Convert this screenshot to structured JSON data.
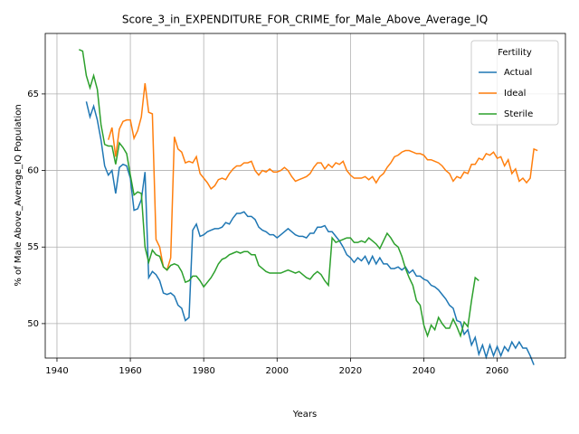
{
  "chart_data": {
    "type": "line",
    "title": "Score_3_in_EXPENDITURE_FOR_CRIME_for_Male_Above_Average_IQ",
    "xlabel": "Years",
    "ylabel": "% of Male Above_Average_IQ Population",
    "legend_title": "Fertility",
    "legend": "upper right",
    "grid": true,
    "xlim": [
      1936.8,
      2078.6
    ],
    "ylim": [
      47.75,
      68.95
    ],
    "xticks": [
      1940,
      1960,
      1980,
      2000,
      2020,
      2040,
      2060
    ],
    "yticks": [
      50,
      55,
      60,
      65
    ],
    "x": [
      1946,
      1947,
      1948,
      1949,
      1950,
      1951,
      1952,
      1953,
      1954,
      1955,
      1956,
      1957,
      1958,
      1959,
      1960,
      1961,
      1962,
      1963,
      1964,
      1965,
      1966,
      1967,
      1968,
      1969,
      1970,
      1971,
      1972,
      1973,
      1974,
      1975,
      1976,
      1977,
      1978,
      1979,
      1980,
      1981,
      1982,
      1983,
      1984,
      1985,
      1986,
      1987,
      1988,
      1989,
      1990,
      1991,
      1992,
      1993,
      1994,
      1995,
      1996,
      1997,
      1998,
      1999,
      2000,
      2001,
      2002,
      2003,
      2004,
      2005,
      2006,
      2007,
      2008,
      2009,
      2010,
      2011,
      2012,
      2013,
      2014,
      2015,
      2016,
      2017,
      2018,
      2019,
      2020,
      2021,
      2022,
      2023,
      2024,
      2025,
      2026,
      2027,
      2028,
      2029,
      2030,
      2031,
      2032,
      2033,
      2034,
      2035,
      2036,
      2037,
      2038,
      2039,
      2040,
      2041,
      2042,
      2043,
      2044,
      2045,
      2046,
      2047,
      2048,
      2049,
      2050,
      2051,
      2052,
      2053,
      2054,
      2055,
      2056,
      2057,
      2058,
      2059,
      2060,
      2061,
      2062,
      2063,
      2064,
      2065,
      2066,
      2067,
      2068,
      2069,
      2070,
      2071
    ],
    "series": [
      {
        "name": "Actual",
        "color": "#1f77b4",
        "values": [
          null,
          null,
          64.5,
          63.5,
          64.2,
          63.3,
          62.0,
          60.3,
          59.7,
          60.0,
          58.5,
          60.2,
          60.4,
          60.3,
          59.5,
          57.4,
          57.5,
          58.1,
          59.9,
          53.0,
          53.4,
          53.2,
          52.8,
          52.0,
          51.9,
          52.0,
          51.8,
          51.2,
          51.0,
          50.2,
          50.4,
          56.1,
          56.5,
          55.7,
          55.8,
          56.0,
          56.1,
          56.2,
          56.2,
          56.3,
          56.6,
          56.5,
          56.9,
          57.2,
          57.2,
          57.3,
          57.0,
          57.0,
          56.8,
          56.3,
          56.1,
          56.0,
          55.8,
          55.8,
          55.6,
          55.8,
          56.0,
          56.2,
          56.0,
          55.8,
          55.7,
          55.7,
          55.6,
          55.9,
          55.9,
          56.3,
          56.3,
          56.4,
          56.0,
          56.0,
          55.7,
          55.4,
          55.0,
          54.5,
          54.3,
          54.0,
          54.3,
          54.1,
          54.4,
          53.9,
          54.4,
          53.9,
          54.3,
          53.9,
          53.9,
          53.6,
          53.6,
          53.7,
          53.5,
          53.7,
          53.3,
          53.5,
          53.1,
          53.1,
          52.9,
          52.8,
          52.5,
          52.4,
          52.2,
          51.9,
          51.6,
          51.2,
          51.0,
          50.2,
          50.1,
          49.3,
          49.6,
          48.6,
          49.1,
          48.0,
          48.6,
          47.8,
          48.6,
          47.9,
          48.5,
          47.9,
          48.5,
          48.2,
          48.8,
          48.4,
          48.8,
          48.4,
          48.4,
          47.9,
          47.3,
          null
        ]
      },
      {
        "name": "Ideal",
        "color": "#ff7f0e",
        "values": [
          null,
          null,
          null,
          null,
          null,
          null,
          null,
          null,
          62.0,
          62.8,
          60.9,
          62.7,
          63.2,
          63.3,
          63.3,
          62.1,
          62.6,
          63.5,
          65.7,
          63.8,
          63.7,
          55.5,
          55.0,
          53.7,
          53.5,
          54.3,
          62.2,
          61.4,
          61.2,
          60.5,
          60.6,
          60.5,
          60.9,
          59.8,
          59.5,
          59.2,
          58.8,
          59.0,
          59.4,
          59.5,
          59.4,
          59.8,
          60.1,
          60.3,
          60.3,
          60.5,
          60.5,
          60.6,
          60.0,
          59.7,
          60.0,
          59.9,
          60.1,
          59.9,
          59.9,
          60.0,
          60.2,
          60.0,
          59.6,
          59.3,
          59.4,
          59.5,
          59.6,
          59.8,
          60.2,
          60.5,
          60.5,
          60.1,
          60.4,
          60.2,
          60.5,
          60.4,
          60.6,
          60.0,
          59.7,
          59.5,
          59.5,
          59.5,
          59.6,
          59.4,
          59.6,
          59.2,
          59.6,
          59.8,
          60.2,
          60.5,
          60.9,
          61.0,
          61.2,
          61.3,
          61.3,
          61.2,
          61.1,
          61.1,
          61.0,
          60.7,
          60.7,
          60.6,
          60.5,
          60.3,
          60.0,
          59.8,
          59.3,
          59.6,
          59.5,
          59.9,
          59.8,
          60.4,
          60.4,
          60.8,
          60.7,
          61.1,
          61.0,
          61.2,
          60.8,
          60.9,
          60.3,
          60.7,
          59.8,
          60.1,
          59.3,
          59.5,
          59.2,
          59.5,
          61.4,
          61.3
        ]
      },
      {
        "name": "Sterile",
        "color": "#2ca02c",
        "values": [
          67.9,
          67.8,
          66.2,
          65.4,
          66.2,
          65.3,
          63.0,
          61.7,
          61.6,
          61.6,
          60.4,
          61.8,
          61.5,
          61.1,
          59.7,
          58.4,
          58.6,
          58.5,
          55.0,
          54.0,
          54.8,
          54.5,
          54.4,
          53.7,
          53.5,
          53.8,
          53.9,
          53.8,
          53.4,
          52.7,
          52.8,
          53.1,
          53.1,
          52.8,
          52.4,
          52.7,
          53.0,
          53.4,
          53.9,
          54.2,
          54.3,
          54.5,
          54.6,
          54.7,
          54.6,
          54.7,
          54.7,
          54.5,
          54.5,
          53.8,
          53.6,
          53.4,
          53.3,
          53.3,
          53.3,
          53.3,
          53.4,
          53.5,
          53.4,
          53.3,
          53.4,
          53.2,
          53.0,
          52.9,
          53.2,
          53.4,
          53.2,
          52.8,
          52.5,
          55.6,
          55.3,
          55.4,
          55.5,
          55.6,
          55.6,
          55.3,
          55.3,
          55.4,
          55.3,
          55.6,
          55.4,
          55.2,
          54.9,
          55.4,
          55.9,
          55.6,
          55.2,
          55.0,
          54.4,
          53.6,
          53.0,
          52.5,
          51.5,
          51.2,
          49.9,
          49.2,
          49.9,
          49.6,
          50.4,
          50.0,
          49.7,
          49.7,
          50.3,
          49.8,
          49.2,
          50.1,
          49.8,
          51.5,
          53.0,
          52.8,
          null,
          null,
          null,
          null,
          null,
          null,
          null,
          null,
          null,
          null,
          null,
          null,
          null,
          null,
          null,
          null
        ]
      }
    ]
  }
}
